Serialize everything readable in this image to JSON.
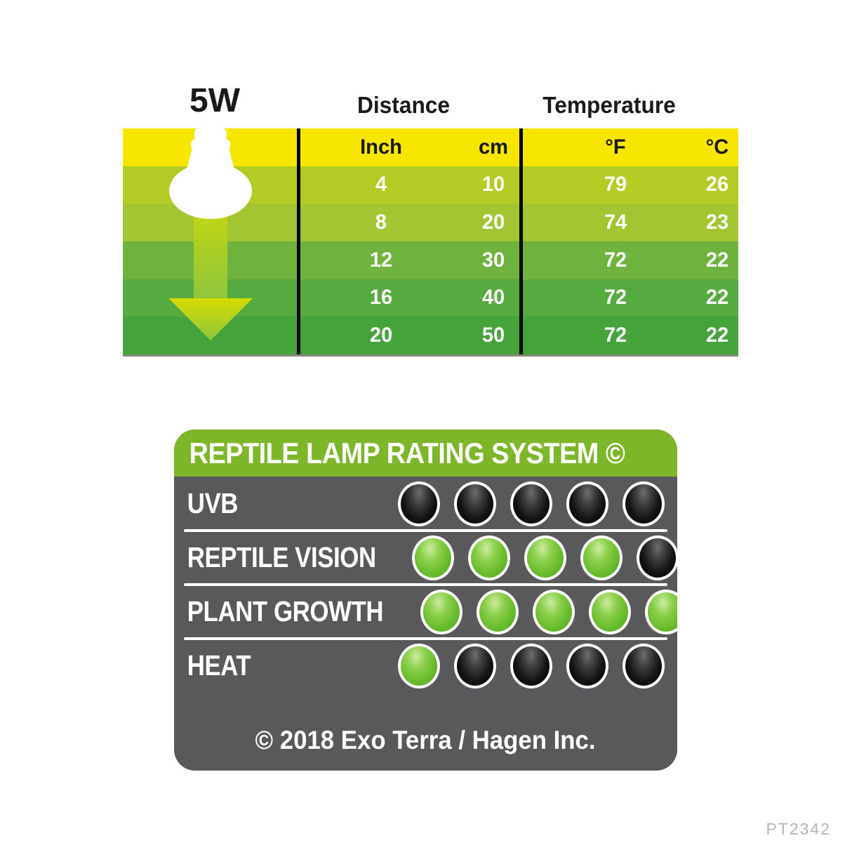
{
  "watt_label": "5W",
  "table": {
    "group_headers": {
      "distance": "Distance",
      "temperature": "Temperature"
    },
    "columns": [
      "Inch",
      "cm",
      "°F",
      "°C"
    ],
    "rows": [
      [
        "4",
        "10",
        "79",
        "26"
      ],
      [
        "8",
        "20",
        "74",
        "23"
      ],
      [
        "12",
        "30",
        "72",
        "22"
      ],
      [
        "16",
        "40",
        "72",
        "22"
      ],
      [
        "20",
        "50",
        "72",
        "22"
      ]
    ],
    "row_colors": [
      "#F7E600",
      "#B5CB25",
      "#A3C532",
      "#6FB33E",
      "#55AA40",
      "#46A33C"
    ],
    "divider_color": "#000000",
    "header_text_color": "#1A1A1A",
    "value_text_color": "#FFFFFF"
  },
  "lamp": {
    "bulb_color": "#FFFFFF",
    "arrow_color_top": "#D5DB00",
    "arrow_color_bottom": "#8FC63E"
  },
  "rating_panel": {
    "title": "REPTILE LAMP RATING SYSTEM ©",
    "header_color": "#7EB629",
    "body_color": "#59585A",
    "dot_green_color": "#6ABC2D",
    "dot_black_color": "#000000",
    "max_dots": 5,
    "categories": [
      {
        "label": "UVB",
        "dots": [
          "black",
          "black",
          "black",
          "black",
          "black"
        ]
      },
      {
        "label": "REPTILE VISION",
        "dots": [
          "green",
          "green",
          "green",
          "green",
          "black"
        ]
      },
      {
        "label": "PLANT GROWTH",
        "dots": [
          "green",
          "green",
          "green",
          "green",
          "green"
        ]
      },
      {
        "label": "HEAT",
        "dots": [
          "green",
          "black",
          "black",
          "black",
          "black"
        ]
      }
    ],
    "footer": "© 2018 Exo Terra / Hagen Inc."
  },
  "product_code": "PT2342"
}
